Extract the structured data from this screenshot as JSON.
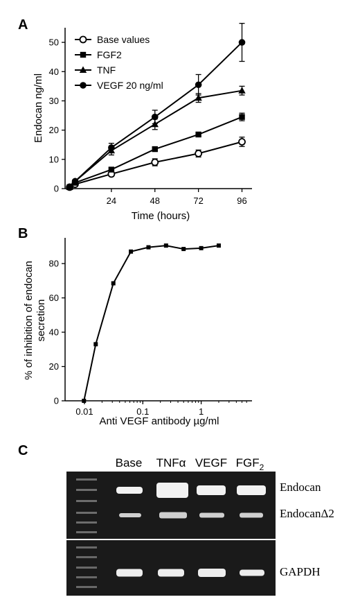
{
  "panels": {
    "a": "A",
    "b": "B",
    "c": "C"
  },
  "chart_data": [
    {
      "type": "line",
      "xlabel": "Time (hours)",
      "ylabel": "Endocan ng/ml",
      "xticks": [
        24,
        48,
        72,
        96
      ],
      "yticks": [
        0,
        10,
        20,
        30,
        40,
        50
      ],
      "xlim": [
        0,
        100
      ],
      "ylim": [
        0,
        55
      ],
      "legend_position": "top-left",
      "x": [
        1,
        4,
        24,
        48,
        72,
        96
      ],
      "series": [
        {
          "name": "Base values",
          "marker": "circle-open",
          "values": [
            0.5,
            1.5,
            5,
            9,
            12,
            16
          ],
          "errors": [
            0,
            0,
            0.8,
            1.2,
            1.2,
            1.6
          ]
        },
        {
          "name": "FGF2",
          "marker": "square",
          "values": [
            0.5,
            2,
            6.5,
            13.5,
            18.5,
            24.5
          ],
          "errors": [
            0,
            0,
            0.6,
            0.6,
            0.7,
            1.3
          ]
        },
        {
          "name": "TNF",
          "marker": "triangle",
          "values": [
            0.5,
            2.5,
            13,
            22,
            31,
            33.5
          ],
          "errors": [
            0,
            0,
            1.5,
            1.8,
            1.5,
            1.5
          ]
        },
        {
          "name": "VEGF 20 ng/ml",
          "marker": "circle",
          "values": [
            0.5,
            2.5,
            14,
            24.5,
            35.5,
            50
          ],
          "errors": [
            0,
            0,
            1.5,
            2.3,
            3.5,
            6.5
          ]
        }
      ]
    },
    {
      "type": "line",
      "xlabel": "Anti VEGF antibody µg/ml",
      "ylabel": "% of inhibition of endocan secretion",
      "xscale": "log",
      "xticks": [
        "0.01",
        "0.1",
        "1"
      ],
      "yticks": [
        0,
        20,
        40,
        60,
        80
      ],
      "ylim": [
        0,
        95
      ],
      "x": [
        0.0098,
        0.0156,
        0.03125,
        0.0625,
        0.125,
        0.25,
        0.5,
        1,
        2
      ],
      "series": [
        {
          "marker": "square",
          "values": [
            0,
            33,
            68.5,
            87,
            89.5,
            90.5,
            88.5,
            89,
            90.5
          ]
        }
      ]
    }
  ],
  "gel": {
    "lanes": [
      "Base",
      "TNFα",
      "VEGF",
      "FGF",
      "2"
    ],
    "bands_top": [
      "Endocan",
      "EndocanΔ2"
    ],
    "band_bottom": "GAPDH"
  }
}
